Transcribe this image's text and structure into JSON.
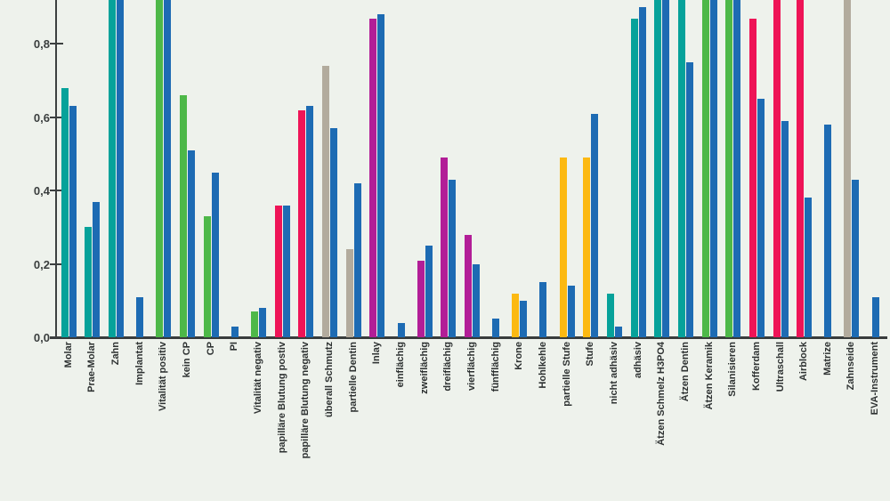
{
  "chart_data": {
    "type": "bar",
    "title": "",
    "xlabel": "",
    "ylabel": "",
    "grid": false,
    "legend": "none",
    "ylim": [
      0,
      0.92
    ],
    "clip_note": "bars flagged clipped run to the top edge of the cropped image (value at least 0.9)",
    "y_axis": {
      "ticks": [
        {
          "label": "0,0",
          "value": 0.0
        },
        {
          "label": "0,2",
          "value": 0.2
        },
        {
          "label": "0,4",
          "value": 0.4
        },
        {
          "label": "0,6",
          "value": 0.6
        },
        {
          "label": "0,8",
          "value": 0.8
        }
      ]
    },
    "colors": {
      "blue": "#1d6bb3",
      "teal": "#06a29a",
      "green": "#4db848",
      "pink": "#ee1457",
      "magenta": "#b21e97",
      "gray": "#b2ab9d",
      "yellow": "#fcb912"
    },
    "background_color": "#eef2ec",
    "axis_color": "#3c4040",
    "groups": [
      {
        "label": "Molar",
        "bars": [
          {
            "color": "teal",
            "value": 0.68
          },
          {
            "color": "blue",
            "value": 0.63
          }
        ]
      },
      {
        "label": "Prae-Molar",
        "bars": [
          {
            "color": "teal",
            "value": 0.3
          },
          {
            "color": "blue",
            "value": 0.37
          }
        ]
      },
      {
        "label": "Zahn",
        "bars": [
          {
            "color": "teal",
            "value": 0.92,
            "clipped": true
          },
          {
            "color": "blue",
            "value": 0.92,
            "clipped": true
          }
        ]
      },
      {
        "label": "Implantat",
        "bars": [
          {
            "color": "blue",
            "value": 0.11
          }
        ]
      },
      {
        "label": "Vitalität positiv",
        "bars": [
          {
            "color": "green",
            "value": 0.92,
            "clipped": true
          },
          {
            "color": "blue",
            "value": 0.92,
            "clipped": true
          }
        ]
      },
      {
        "label": "kein CP",
        "bars": [
          {
            "color": "green",
            "value": 0.66
          },
          {
            "color": "blue",
            "value": 0.51
          }
        ]
      },
      {
        "label": "CP",
        "bars": [
          {
            "color": "green",
            "value": 0.33
          },
          {
            "color": "blue",
            "value": 0.45
          }
        ]
      },
      {
        "label": "PI",
        "bars": [
          {
            "color": "blue",
            "value": 0.03
          }
        ]
      },
      {
        "label": "Vitalität negativ",
        "bars": [
          {
            "color": "green",
            "value": 0.07
          },
          {
            "color": "blue",
            "value": 0.08
          }
        ]
      },
      {
        "label": "papilläre Blutung postiv",
        "bars": [
          {
            "color": "pink",
            "value": 0.36
          },
          {
            "color": "blue",
            "value": 0.36
          }
        ]
      },
      {
        "label": "papilläre Blutung negativ",
        "bars": [
          {
            "color": "pink",
            "value": 0.62
          },
          {
            "color": "blue",
            "value": 0.63
          }
        ]
      },
      {
        "label": "überall Schmutz",
        "bars": [
          {
            "color": "gray",
            "value": 0.74
          },
          {
            "color": "blue",
            "value": 0.57
          }
        ]
      },
      {
        "label": "partielle Dentin",
        "bars": [
          {
            "color": "gray",
            "value": 0.24
          },
          {
            "color": "blue",
            "value": 0.42
          }
        ]
      },
      {
        "label": "Inlay",
        "bars": [
          {
            "color": "magenta",
            "value": 0.87
          },
          {
            "color": "blue",
            "value": 0.88
          }
        ]
      },
      {
        "label": "einflächig",
        "bars": [
          {
            "color": "blue",
            "value": 0.04
          }
        ]
      },
      {
        "label": "zweiflächig",
        "bars": [
          {
            "color": "magenta",
            "value": 0.21
          },
          {
            "color": "blue",
            "value": 0.25
          }
        ]
      },
      {
        "label": "dreiflächig",
        "bars": [
          {
            "color": "magenta",
            "value": 0.49
          },
          {
            "color": "blue",
            "value": 0.43
          }
        ]
      },
      {
        "label": "vierflächig",
        "bars": [
          {
            "color": "magenta",
            "value": 0.28
          },
          {
            "color": "blue",
            "value": 0.2
          }
        ]
      },
      {
        "label": "fünfflächig",
        "bars": [
          {
            "color": "blue",
            "value": 0.05
          }
        ]
      },
      {
        "label": "Krone",
        "bars": [
          {
            "color": "yellow",
            "value": 0.12
          },
          {
            "color": "blue",
            "value": 0.1
          }
        ]
      },
      {
        "label": "Hohlkehle",
        "bars": [
          {
            "color": "blue",
            "value": 0.15
          }
        ]
      },
      {
        "label": "partielle Stufe",
        "bars": [
          {
            "color": "yellow",
            "value": 0.49
          },
          {
            "color": "blue",
            "value": 0.14
          }
        ]
      },
      {
        "label": "Stufe",
        "bars": [
          {
            "color": "yellow",
            "value": 0.49
          },
          {
            "color": "blue",
            "value": 0.61
          }
        ]
      },
      {
        "label": "nicht adhäsiv",
        "bars": [
          {
            "color": "teal",
            "value": 0.12
          },
          {
            "color": "blue",
            "value": 0.03
          }
        ]
      },
      {
        "label": "adhäsiv",
        "bars": [
          {
            "color": "teal",
            "value": 0.87
          },
          {
            "color": "blue",
            "value": 0.9
          }
        ]
      },
      {
        "label": "Ätzen Schmelz H3PO4",
        "bars": [
          {
            "color": "teal",
            "value": 0.92,
            "clipped": true
          },
          {
            "color": "blue",
            "value": 0.92,
            "clipped": true
          }
        ]
      },
      {
        "label": "Ätzen Dentin",
        "bars": [
          {
            "color": "teal",
            "value": 0.92,
            "clipped": true
          },
          {
            "color": "blue",
            "value": 0.75
          }
        ]
      },
      {
        "label": "Ätzen Keramik",
        "bars": [
          {
            "color": "green",
            "value": 0.92,
            "clipped": true
          },
          {
            "color": "blue",
            "value": 0.92,
            "clipped": true
          }
        ]
      },
      {
        "label": "Silanisieren",
        "bars": [
          {
            "color": "green",
            "value": 0.92,
            "clipped": true
          },
          {
            "color": "blue",
            "value": 0.92,
            "clipped": true
          }
        ]
      },
      {
        "label": "Kofferdam",
        "bars": [
          {
            "color": "pink",
            "value": 0.87
          },
          {
            "color": "blue",
            "value": 0.65
          }
        ]
      },
      {
        "label": "Ultraschall",
        "bars": [
          {
            "color": "pink",
            "value": 0.92,
            "clipped": true
          },
          {
            "color": "blue",
            "value": 0.59
          }
        ]
      },
      {
        "label": "Airblock",
        "bars": [
          {
            "color": "pink",
            "value": 0.92,
            "clipped": true
          },
          {
            "color": "blue",
            "value": 0.38
          }
        ]
      },
      {
        "label": "Matrize",
        "bars": [
          {
            "color": "blue",
            "value": 0.58
          }
        ]
      },
      {
        "label": "Zahnseide",
        "bars": [
          {
            "color": "gray",
            "value": 0.92,
            "clipped": true
          },
          {
            "color": "blue",
            "value": 0.43
          }
        ]
      },
      {
        "label": "EVA-Instrument",
        "bars": [
          {
            "color": "blue",
            "value": 0.11
          }
        ]
      }
    ]
  }
}
